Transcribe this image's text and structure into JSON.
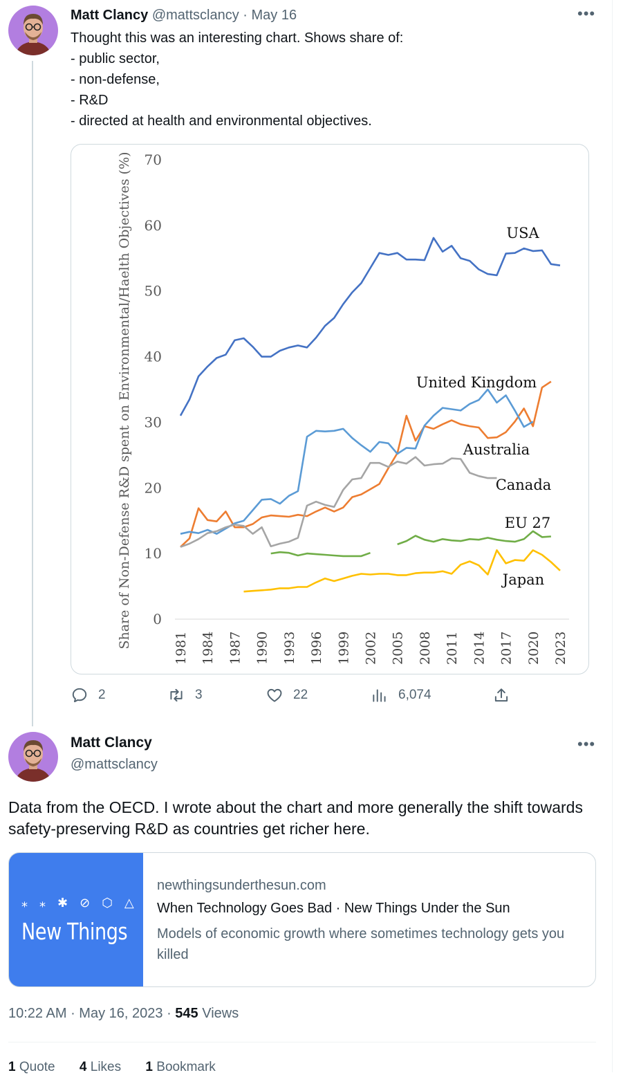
{
  "tweet1": {
    "name": "Matt Clancy",
    "handle": "@mattsclancy",
    "separator": "·",
    "date": "May 16",
    "lines": [
      "Thought this was an interesting chart. Shows share of:",
      "- public sector,",
      "- non-defense,",
      "- R&D",
      "- directed at health and environmental objectives."
    ],
    "replies": "2",
    "retweets": "3",
    "likes": "22",
    "views": "6,074"
  },
  "tweet2": {
    "name": "Matt Clancy",
    "handle": "@mattsclancy",
    "text": "Data from the OECD. I wrote about the chart and more generally the shift towards safety-preserving R&D as countries get richer here.",
    "card": {
      "thumb_glyphs": "⁎ ⁎ ✱ ⊘ ⬡ △",
      "thumb_text": "New Things",
      "domain": "newthingsunderthesun.com",
      "title": "When Technology Goes Bad · New Things Under the Sun",
      "description": "Models of economic growth where sometimes technology gets you killed"
    },
    "time": "10:22 AM",
    "date": "May 16, 2023",
    "views_count": "545",
    "views_label": "Views",
    "quotes_count": "1",
    "quotes_label": "Quote",
    "likes_count": "4",
    "likes_label": "Likes",
    "bookmarks_count": "1",
    "bookmarks_label": "Bookmark"
  },
  "colors": {
    "link_blue": "#3f7ded",
    "muted": "#536471",
    "border": "#cfd9de"
  },
  "icons": [
    "more-icon",
    "reply-icon",
    "retweet-icon",
    "like-icon",
    "views-icon",
    "share-icon"
  ],
  "chart_data": {
    "type": "line",
    "xlabel": "",
    "ylabel": "Share of Non-Defense R&D spent on Environmental/Haelth Objectives (%)",
    "ylim": [
      0,
      70
    ],
    "yticks": [
      0,
      10,
      20,
      30,
      40,
      50,
      60,
      70
    ],
    "xticks": [
      "1981",
      "1984",
      "1987",
      "1990",
      "1993",
      "1996",
      "1999",
      "2002",
      "2005",
      "2008",
      "2011",
      "2014",
      "2017",
      "2020",
      "2023"
    ],
    "grid": false,
    "legend": "inline labels",
    "series": [
      {
        "name": "USA",
        "color": "#4472c4",
        "x": [
          1981,
          1982,
          1983,
          1984,
          1985,
          1986,
          1987,
          1988,
          1989,
          1990,
          1991,
          1992,
          1993,
          1994,
          1995,
          1996,
          1997,
          1998,
          1999,
          2000,
          2001,
          2002,
          2003,
          2004,
          2005,
          2006,
          2007,
          2008,
          2009,
          2010,
          2011,
          2012,
          2013,
          2014,
          2015,
          2016,
          2017,
          2018,
          2019,
          2020,
          2021,
          2022,
          2023
        ],
        "y": [
          31,
          33.5,
          37,
          38.5,
          39.8,
          40.3,
          42.5,
          42.8,
          41.5,
          40,
          40,
          40.9,
          41.4,
          41.7,
          41.4,
          42.9,
          44.7,
          45.9,
          48,
          49.8,
          51.2,
          53.5,
          55.8,
          55.5,
          55.8,
          54.8,
          54.8,
          54.7,
          58.1,
          56,
          56.9,
          55,
          54.6,
          53.3,
          52.6,
          52.4,
          55.7,
          55.8,
          56.5,
          56.1,
          56.2,
          54.1,
          53.9
        ]
      },
      {
        "name": "United Kingdom",
        "color": "#ed7d31",
        "x": [
          1981,
          1982,
          1983,
          1984,
          1985,
          1986,
          1987,
          1988,
          1989,
          1990,
          1991,
          1992,
          1993,
          1994,
          1995,
          1996,
          1997,
          1998,
          1999,
          2000,
          2001,
          2002,
          2003,
          2004,
          2005,
          2006,
          2007,
          2008,
          2009,
          2010,
          2011,
          2012,
          2013,
          2014,
          2015,
          2016,
          2017,
          2018,
          2019,
          2020,
          2021,
          2022
        ],
        "y": [
          11,
          12.3,
          16.9,
          15.1,
          14.9,
          16.4,
          14,
          14,
          14.5,
          15.5,
          15.8,
          15.7,
          15.6,
          15.9,
          15.7,
          16.4,
          17,
          16.4,
          17,
          18.6,
          19,
          19.8,
          20.6,
          23,
          25.3,
          31,
          27.2,
          29.4,
          29,
          29.7,
          30.3,
          29.7,
          29.4,
          29.2,
          27.6,
          27.7,
          28.5,
          30.1,
          32.1,
          29.4,
          35.3,
          36.2
        ]
      },
      {
        "name": "Australia",
        "color": "#5b9bd5",
        "x": [
          1981,
          1982,
          1983,
          1984,
          1985,
          1986,
          1987,
          1988,
          1989,
          1990,
          1991,
          1992,
          1993,
          1994,
          1995,
          1996,
          1997,
          1998,
          1999,
          2000,
          2001,
          2002,
          2003,
          2004,
          2005,
          2006,
          2007,
          2008,
          2009,
          2010,
          2011,
          2012,
          2013,
          2014,
          2015,
          2016,
          2017,
          2018,
          2019,
          2020
        ],
        "y": [
          13,
          13.3,
          13.1,
          13.6,
          13,
          13.8,
          14.6,
          15,
          16.6,
          18.2,
          18.3,
          17.6,
          18.8,
          19.5,
          27.8,
          28.7,
          28.6,
          28.7,
          29,
          27.6,
          26.5,
          25.5,
          27,
          26.8,
          25.2,
          26.1,
          26,
          29.5,
          31,
          32.2,
          32,
          31.8,
          32.8,
          33.4,
          35,
          33,
          34.1,
          31.8,
          29.3,
          30.1
        ]
      },
      {
        "name": "Canada",
        "color": "#a5a5a5",
        "x": [
          1981,
          1982,
          1983,
          1984,
          1985,
          1986,
          1987,
          1988,
          1989,
          1990,
          1991,
          1992,
          1993,
          1994,
          1995,
          1996,
          1997,
          1998,
          1999,
          2000,
          2001,
          2002,
          2003,
          2004,
          2005,
          2006,
          2007,
          2008,
          2009,
          2010,
          2011,
          2012,
          2013,
          2014,
          2015,
          2016
        ],
        "y": [
          11,
          11.5,
          12.2,
          13.1,
          13.4,
          14,
          14.4,
          14.2,
          13,
          14,
          11.1,
          11.5,
          11.8,
          12.4,
          17.3,
          17.9,
          17.4,
          17.1,
          19.7,
          21.3,
          21.5,
          23.8,
          23.8,
          23.2,
          24,
          23.7,
          24.7,
          23.4,
          23.6,
          23.7,
          24.5,
          24.4,
          22.3,
          21.8,
          21.5,
          21.5
        ]
      },
      {
        "name": "EU 27",
        "color": "#70ad47",
        "x": [
          1991,
          1992,
          1993,
          1994,
          1995,
          1996,
          1997,
          1998,
          1999,
          2000,
          2001,
          2002,
          null,
          2005,
          2006,
          2007,
          2008,
          2009,
          2010,
          2011,
          2012,
          2013,
          2014,
          2015,
          2016,
          2017,
          2018,
          2019,
          2020,
          2021,
          2022
        ],
        "y": [
          10,
          10.2,
          10.1,
          9.7,
          10,
          9.9,
          9.8,
          9.7,
          9.6,
          9.6,
          9.6,
          10.1,
          null,
          11.4,
          11.9,
          12.7,
          12.1,
          11.8,
          12.2,
          12,
          11.9,
          12.2,
          12.1,
          12.4,
          12.1,
          11.9,
          11.8,
          12.2,
          13.4,
          12.5,
          12.6
        ]
      },
      {
        "name": "Japan",
        "color": "#ffc000",
        "x": [
          1988,
          1989,
          1990,
          1991,
          1992,
          1993,
          1994,
          1995,
          1996,
          1997,
          1998,
          1999,
          2000,
          2001,
          2002,
          2003,
          2004,
          2005,
          2006,
          2007,
          2008,
          2009,
          2010,
          2011,
          2012,
          2013,
          2014,
          2015,
          2016,
          2017,
          2018,
          2019,
          2020,
          2021,
          2022,
          2023
        ],
        "y": [
          4.2,
          4.3,
          4.4,
          4.5,
          4.7,
          4.7,
          4.9,
          4.9,
          5.6,
          6.2,
          5.8,
          6.2,
          6.6,
          6.9,
          6.8,
          6.9,
          6.9,
          6.7,
          6.7,
          7,
          7.1,
          7.1,
          7.3,
          6.9,
          8.3,
          8.8,
          8.2,
          6.8,
          10.5,
          8.5,
          9,
          8.9,
          10.5,
          9.8,
          8.7,
          7.4
        ]
      }
    ]
  }
}
